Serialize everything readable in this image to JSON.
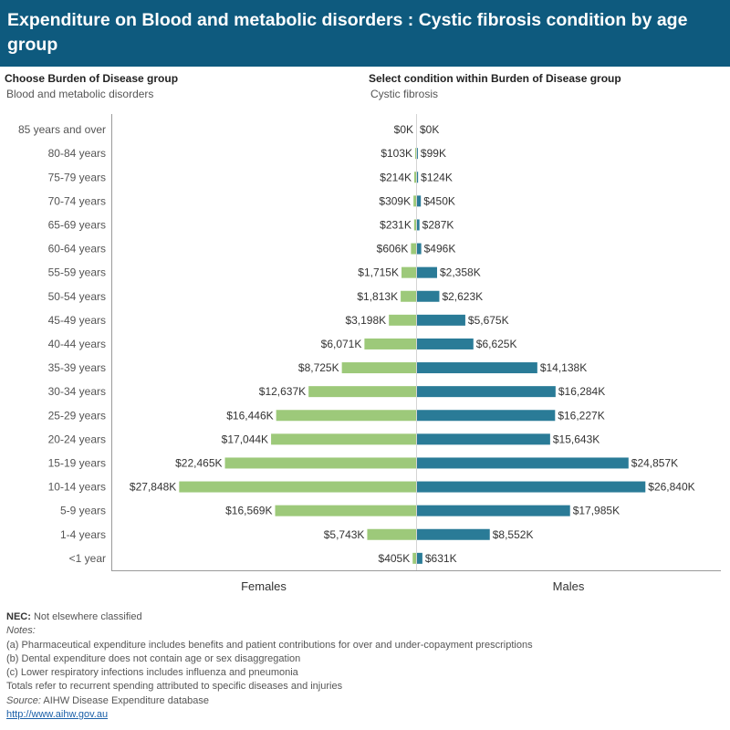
{
  "header": {
    "title": "Expenditure on Blood and metabolic disorders : Cystic fibrosis condition by age group"
  },
  "controls": {
    "group_label": "Choose Burden of Disease group",
    "group_value": "Blood and metabolic disorders",
    "condition_label": "Select condition within Burden of Disease group",
    "condition_value": "Cystic fibrosis"
  },
  "colors": {
    "females": "#9dc97a",
    "males": "#2a7b97",
    "header": "#0e5a7e"
  },
  "chart_data": {
    "type": "bar",
    "orientation": "horizontal",
    "layout": "population-pyramid",
    "categories": [
      "85 years and over",
      "80-84 years",
      "75-79 years",
      "70-74 years",
      "65-69 years",
      "60-64 years",
      "55-59 years",
      "50-54 years",
      "45-49 years",
      "40-44 years",
      "35-39 years",
      "30-34 years",
      "25-29 years",
      "20-24 years",
      "15-19 years",
      "10-14 years",
      "5-9 years",
      "1-4 years",
      "<1 year"
    ],
    "series": [
      {
        "name": "Females",
        "values": [
          0,
          103,
          214,
          309,
          231,
          606,
          1715,
          1813,
          3198,
          6071,
          8725,
          12637,
          16446,
          17044,
          22465,
          27848,
          16569,
          5743,
          405
        ],
        "labels": [
          "$0K",
          "$103K",
          "$214K",
          "$309K",
          "$231K",
          "$606K",
          "$1,715K",
          "$1,813K",
          "$3,198K",
          "$6,071K",
          "$8,725K",
          "$12,637K",
          "$16,446K",
          "$17,044K",
          "$22,465K",
          "$27,848K",
          "$16,569K",
          "$5,743K",
          "$405K"
        ]
      },
      {
        "name": "Males",
        "values": [
          0,
          99,
          124,
          450,
          287,
          496,
          2358,
          2623,
          5675,
          6625,
          14138,
          16284,
          16227,
          15643,
          24857,
          26840,
          17985,
          8552,
          631
        ],
        "labels": [
          "$0K",
          "$99K",
          "$124K",
          "$450K",
          "$287K",
          "$496K",
          "$2,358K",
          "$2,623K",
          "$5,675K",
          "$6,625K",
          "$14,138K",
          "$16,284K",
          "$16,227K",
          "$15,643K",
          "$24,857K",
          "$26,840K",
          "$17,985K",
          "$8,552K",
          "$631K"
        ]
      }
    ],
    "xlabel": "",
    "ylabel": "",
    "grid": false,
    "legend": "none"
  },
  "footer": {
    "nec_abbrev": "NEC:",
    "nec_text": " Not elsewhere classified",
    "notes_label": "Notes:",
    "notes": [
      "(a) Pharmaceutical expenditure includes benefits and patient contributions for over and under-copayment prescriptions",
      "(b) Dental expenditure does not contain age or sex disaggregation",
      "(c) Lower respiratory infections includes influenza and pneumonia",
      "Totals refer to recurrent spending attributed to specific diseases and injuries"
    ],
    "source_label": "Source:",
    "source_text": " AIHW Disease Expenditure database",
    "link": "http://www.aihw.gov.au"
  }
}
